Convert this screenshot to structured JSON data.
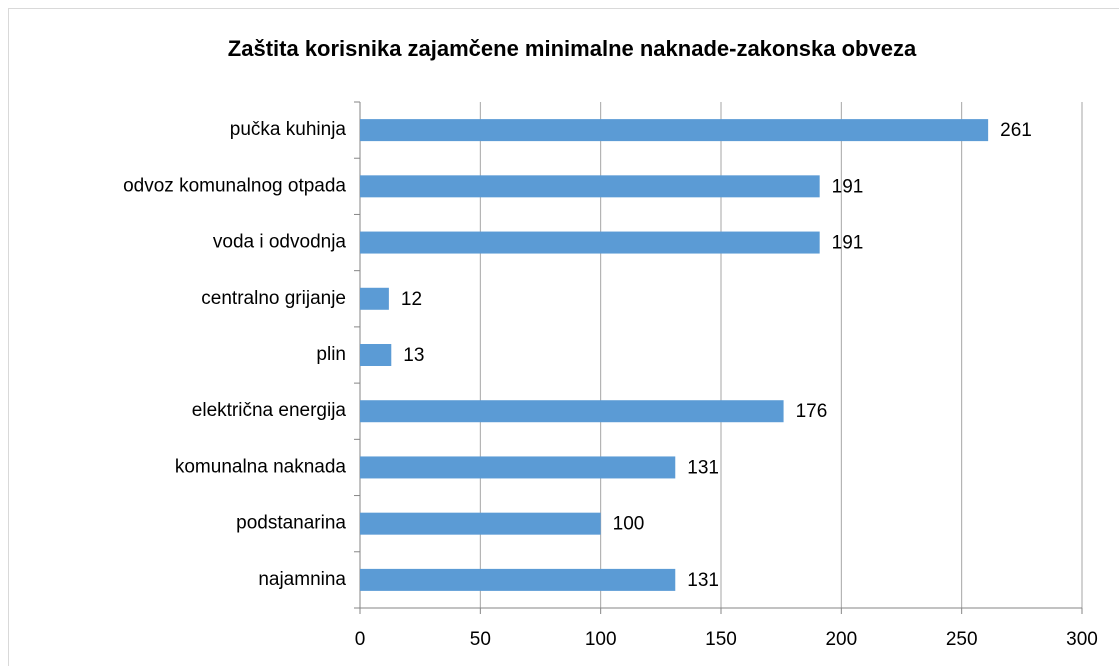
{
  "chart_data": {
    "type": "bar",
    "orientation": "horizontal",
    "title": "Zaštita korisnika zajamčene minimalne naknade-zakonska obveza",
    "categories": [
      "pučka kuhinja",
      "odvoz komunalnog otpada",
      "voda i odvodnja",
      "centralno grijanje",
      "plin",
      "električna energija",
      "komunalna naknada",
      "podstanarina",
      "najamnina"
    ],
    "values": [
      261,
      191,
      191,
      12,
      13,
      176,
      131,
      100,
      131
    ],
    "color": "#5b9bd5",
    "xlim": [
      0,
      300
    ],
    "xticks": [
      0,
      50,
      100,
      150,
      200,
      250,
      300
    ],
    "grid": true
  }
}
